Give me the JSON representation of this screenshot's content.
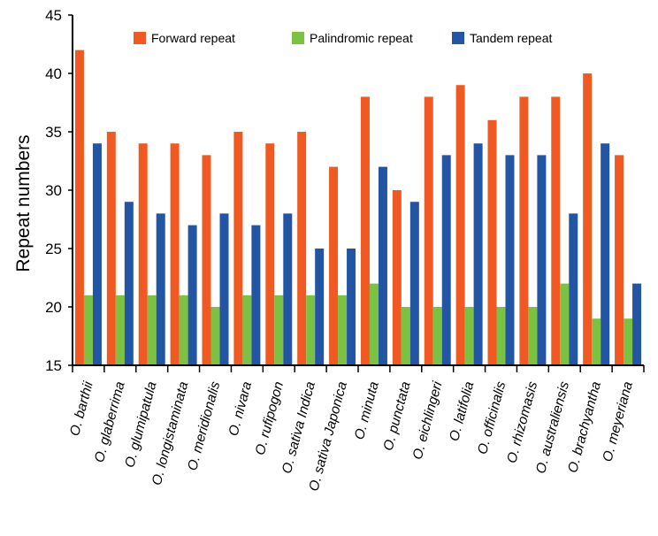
{
  "chart_data": {
    "type": "bar",
    "title": "",
    "xlabel": "",
    "ylabel": "Repeat  numbers",
    "ylim": [
      15,
      45
    ],
    "yticks": [
      15,
      20,
      25,
      30,
      35,
      40,
      45
    ],
    "legend_position": "top",
    "categories": [
      "O. barthii",
      "O. glaberrima",
      "O. glumipatula",
      "O. longistaminata",
      "O. meridionalis",
      "O. nivara",
      "O. rufipogon",
      "O. sativa Indica",
      "O. sativa Japonica",
      "O. minuta",
      "O. punctata",
      "O. eichlingeri",
      "O. latifolia",
      "O. officinalis",
      "O. rhizomasis",
      "O. australiensis",
      "O. brachyantha",
      "O. meyeriana"
    ],
    "series": [
      {
        "name": "Forward repeat",
        "color": "#F05A22",
        "values": [
          42,
          35,
          34,
          34,
          33,
          35,
          34,
          35,
          32,
          38,
          30,
          38,
          39,
          36,
          38,
          38,
          40,
          33
        ]
      },
      {
        "name": "Palindromic repeat",
        "color": "#7CC242",
        "values": [
          21,
          21,
          21,
          21,
          20,
          21,
          21,
          21,
          21,
          22,
          20,
          20,
          20,
          20,
          20,
          22,
          19,
          19
        ]
      },
      {
        "name": "Tandem repeat",
        "color": "#2255A4",
        "values": [
          34,
          29,
          28,
          27,
          28,
          27,
          28,
          25,
          25,
          32,
          29,
          33,
          34,
          33,
          33,
          28,
          34,
          22
        ]
      }
    ]
  }
}
